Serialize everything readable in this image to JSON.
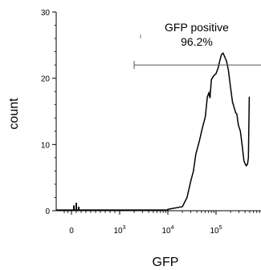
{
  "chart_data": {
    "type": "histogram",
    "title": "",
    "xlabel": "GFP",
    "ylabel": "count",
    "x_scale": "biexponential",
    "xlim": [
      -100,
      1000000
    ],
    "ylim": [
      0,
      30
    ],
    "y_ticks": [
      0,
      10,
      20,
      30
    ],
    "x_ticks": [
      {
        "value": 0,
        "base": "0",
        "exp": ""
      },
      {
        "value": 1000,
        "base": "10",
        "exp": "3"
      },
      {
        "value": 10000,
        "base": "10",
        "exp": "4"
      },
      {
        "value": 100000,
        "base": "10",
        "exp": "5"
      }
    ],
    "series": [
      {
        "points": [
          [
            10000,
            0.2
          ],
          [
            20000,
            0.6
          ],
          [
            25000,
            2.0
          ],
          [
            30000,
            4.5
          ],
          [
            34000,
            6.0
          ],
          [
            38000,
            8.5
          ],
          [
            45000,
            10.5
          ],
          [
            52000,
            12.5
          ],
          [
            60000,
            14.2
          ],
          [
            66000,
            17.2
          ],
          [
            71000,
            17.8
          ],
          [
            75000,
            17.0
          ],
          [
            80000,
            19.8
          ],
          [
            90000,
            20.4
          ],
          [
            100000,
            20.7
          ],
          [
            110000,
            21.5
          ],
          [
            120000,
            22.7
          ],
          [
            130000,
            23.6
          ],
          [
            140000,
            23.8
          ],
          [
            150000,
            23.3
          ],
          [
            165000,
            22.6
          ],
          [
            180000,
            21.3
          ],
          [
            200000,
            18.6
          ],
          [
            220000,
            16.4
          ],
          [
            240000,
            15.5
          ],
          [
            255000,
            14.8
          ],
          [
            270000,
            14.6
          ],
          [
            290000,
            13.0
          ],
          [
            320000,
            12.0
          ],
          [
            350000,
            9.8
          ],
          [
            380000,
            7.5
          ],
          [
            420000,
            6.8
          ],
          [
            450000,
            7.0
          ],
          [
            470000,
            8.0
          ],
          [
            490000,
            17.2
          ]
        ]
      }
    ],
    "gate": {
      "label": "GFP positive",
      "percent": "96.2%",
      "x_start": 2000,
      "x_end": 1000000,
      "y": 22
    }
  }
}
